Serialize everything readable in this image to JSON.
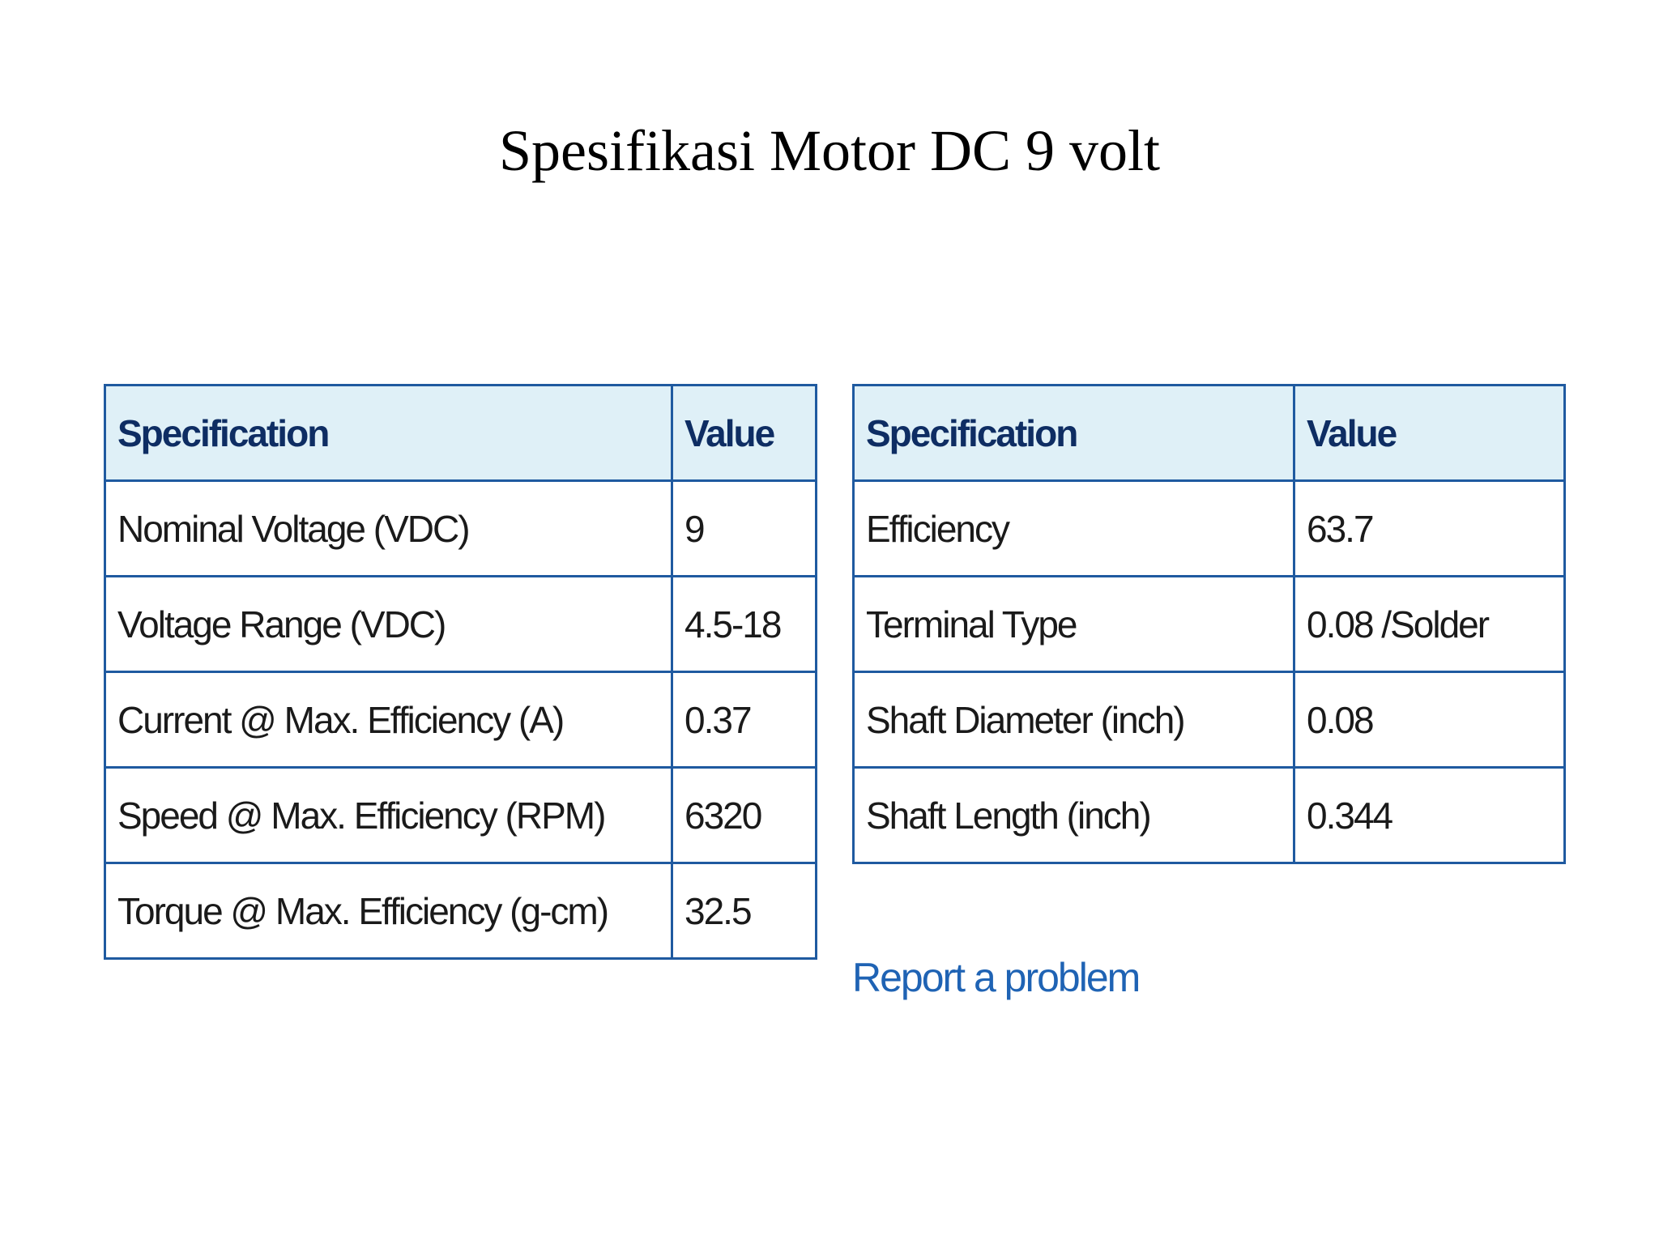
{
  "title": "Spesifikasi Motor DC 9 volt",
  "colors": {
    "header_bg": "#dff0f7",
    "border": "#1f5aa0",
    "header_text": "#0e2d63",
    "link": "#1f63b4"
  },
  "tables": [
    {
      "headers": [
        "Specification",
        "Value"
      ],
      "rows": [
        [
          "Nominal Voltage (VDC)",
          "9"
        ],
        [
          "Voltage Range (VDC)",
          "4.5-18"
        ],
        [
          "Current @ Max. Efficiency (A)",
          "0.37"
        ],
        [
          "Speed @ Max. Efficiency (RPM)",
          "6320"
        ],
        [
          "Torque @ Max. Efficiency (g-cm)",
          "32.5"
        ]
      ]
    },
    {
      "headers": [
        "Specification",
        "Value"
      ],
      "rows": [
        [
          "Efficiency",
          "63.7"
        ],
        [
          "Terminal Type",
          "0.08 /Solder"
        ],
        [
          "Shaft Diameter (inch)",
          "0.08"
        ],
        [
          "Shaft Length (inch)",
          "0.344"
        ]
      ]
    }
  ],
  "report_link": "Report a problem"
}
